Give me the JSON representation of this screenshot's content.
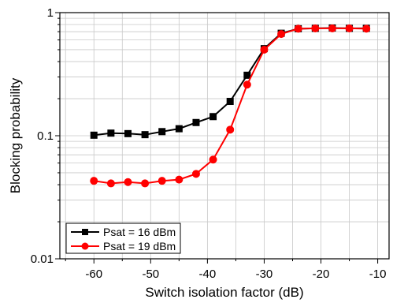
{
  "chart_data": {
    "type": "line",
    "xlabel": "Switch isolation factor (dB)",
    "ylabel": "Blocking probability",
    "xlim": [
      -66,
      -8
    ],
    "ylim": [
      0.01,
      1
    ],
    "y_scale": "log",
    "grid": true,
    "legend_position": "bottom-left",
    "x_ticks": [
      -60,
      -50,
      -40,
      -30,
      -20,
      -10
    ],
    "x_tick_labels": [
      "-60",
      "-50",
      "-40",
      "-30",
      "-20",
      "-10"
    ],
    "y_ticks": [
      0.01,
      0.1,
      1
    ],
    "y_tick_labels": [
      "0.01",
      "0.1",
      "1"
    ],
    "series": [
      {
        "name": "Psat = 16 dBm",
        "color": "#000000",
        "marker": "square",
        "x": [
          -60,
          -57,
          -54,
          -51,
          -48,
          -45,
          -42,
          -39,
          -36,
          -33,
          -30,
          -27,
          -24,
          -21,
          -18,
          -15,
          -12
        ],
        "y": [
          0.101,
          0.105,
          0.104,
          0.102,
          0.108,
          0.114,
          0.128,
          0.143,
          0.19,
          0.31,
          0.51,
          0.68,
          0.74,
          0.745,
          0.75,
          0.745,
          0.745
        ]
      },
      {
        "name": "Psat = 19 dBm",
        "color": "#ff0000",
        "marker": "circle",
        "x": [
          -60,
          -57,
          -54,
          -51,
          -48,
          -45,
          -42,
          -39,
          -36,
          -33,
          -30,
          -27,
          -24,
          -21,
          -18,
          -15,
          -12
        ],
        "y": [
          0.043,
          0.041,
          0.042,
          0.041,
          0.043,
          0.044,
          0.049,
          0.064,
          0.112,
          0.26,
          0.5,
          0.67,
          0.74,
          0.745,
          0.745,
          0.745,
          0.74
        ]
      }
    ]
  }
}
